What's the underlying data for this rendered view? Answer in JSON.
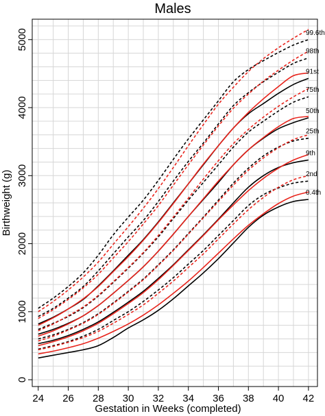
{
  "chart_data": {
    "type": "line",
    "title": "Males",
    "xlabel": "Gestation in Weeks (completed)",
    "ylabel": "Birthweight (g)",
    "xlim": [
      23.6,
      42.6
    ],
    "ylim": [
      -100,
      5300
    ],
    "xticks": [
      24,
      26,
      28,
      30,
      32,
      34,
      36,
      38,
      40,
      42
    ],
    "yticks": [
      0,
      1000,
      2000,
      3000,
      4000,
      5000
    ],
    "grid": true,
    "legend": "none",
    "x": [
      24,
      25,
      26,
      27,
      28,
      29,
      30,
      31,
      32,
      33,
      34,
      35,
      36,
      37,
      38,
      39,
      40,
      41,
      42
    ],
    "colors": {
      "black": "#000000",
      "red": "#e8231b"
    },
    "series": [
      {
        "label": "99.6th",
        "color": "black",
        "dash": true,
        "values": [
          1050,
          1200,
          1370,
          1570,
          1830,
          2130,
          2390,
          2640,
          2930,
          3240,
          3540,
          3820,
          4100,
          4380,
          4560,
          4690,
          4810,
          4920,
          5000
        ]
      },
      {
        "label": "98th",
        "color": "black",
        "dash": true,
        "values": [
          930,
          1050,
          1200,
          1370,
          1600,
          1850,
          2100,
          2340,
          2620,
          2920,
          3210,
          3480,
          3760,
          4030,
          4220,
          4380,
          4520,
          4650,
          4730
        ]
      },
      {
        "label": "91st",
        "color": "black",
        "dash": false,
        "values": [
          820,
          920,
          1040,
          1180,
          1380,
          1600,
          1830,
          2060,
          2320,
          2600,
          2880,
          3160,
          3440,
          3700,
          3910,
          4060,
          4210,
          4340,
          4430
        ]
      },
      {
        "label": "75th",
        "color": "black",
        "dash": true,
        "values": [
          740,
          830,
          930,
          1060,
          1230,
          1430,
          1640,
          1860,
          2100,
          2370,
          2640,
          2900,
          3160,
          3420,
          3640,
          3800,
          3950,
          4080,
          4160
        ]
      },
      {
        "label": "50th",
        "color": "black",
        "dash": false,
        "values": [
          670,
          740,
          830,
          940,
          1090,
          1270,
          1460,
          1660,
          1890,
          2140,
          2400,
          2650,
          2900,
          3160,
          3380,
          3550,
          3690,
          3780,
          3850
        ]
      },
      {
        "label": "25th",
        "color": "black",
        "dash": true,
        "values": [
          600,
          660,
          740,
          840,
          970,
          1130,
          1300,
          1480,
          1690,
          1910,
          2150,
          2390,
          2640,
          2890,
          3110,
          3290,
          3420,
          3510,
          3550
        ]
      },
      {
        "label": "9th",
        "color": "black",
        "dash": false,
        "values": [
          530,
          580,
          650,
          740,
          850,
          990,
          1140,
          1300,
          1490,
          1690,
          1910,
          2130,
          2360,
          2600,
          2830,
          3000,
          3120,
          3190,
          3230
        ]
      },
      {
        "label": "2nd",
        "color": "black",
        "dash": true,
        "values": [
          450,
          500,
          560,
          640,
          740,
          870,
          1000,
          1150,
          1320,
          1500,
          1700,
          1900,
          2120,
          2340,
          2560,
          2720,
          2820,
          2890,
          2920
        ]
      },
      {
        "label": "0.4th",
        "color": "black",
        "dash": false,
        "values": [
          320,
          360,
          400,
          440,
          500,
          620,
          760,
          880,
          1020,
          1190,
          1380,
          1570,
          1780,
          2010,
          2240,
          2420,
          2540,
          2620,
          2650
        ]
      },
      {
        "label": "",
        "color": "red",
        "dash": true,
        "values": [
          1000,
          1150,
          1320,
          1510,
          1730,
          1990,
          2250,
          2520,
          2810,
          3120,
          3440,
          3750,
          4050,
          4300,
          4530,
          4720,
          4880,
          5020,
          5150
        ]
      },
      {
        "label": "",
        "color": "red",
        "dash": true,
        "values": [
          900,
          1030,
          1180,
          1350,
          1550,
          1790,
          2030,
          2290,
          2560,
          2860,
          3160,
          3450,
          3730,
          3990,
          4200,
          4390,
          4550,
          4700,
          4830
        ]
      },
      {
        "label": "",
        "color": "red",
        "dash": false,
        "values": [
          800,
          910,
          1040,
          1190,
          1370,
          1590,
          1810,
          2050,
          2310,
          2590,
          2880,
          3170,
          3440,
          3700,
          3930,
          4130,
          4310,
          4470,
          4510
        ]
      },
      {
        "label": "",
        "color": "red",
        "dash": true,
        "values": [
          720,
          820,
          940,
          1070,
          1240,
          1440,
          1650,
          1870,
          2120,
          2390,
          2670,
          2950,
          3220,
          3470,
          3680,
          3860,
          4020,
          4160,
          4280
        ]
      },
      {
        "label": "",
        "color": "red",
        "dash": false,
        "values": [
          640,
          720,
          820,
          940,
          1090,
          1270,
          1460,
          1660,
          1890,
          2140,
          2400,
          2660,
          2920,
          3160,
          3380,
          3560,
          3720,
          3840,
          3870
        ]
      },
      {
        "label": "",
        "color": "red",
        "dash": true,
        "values": [
          570,
          640,
          730,
          830,
          960,
          1120,
          1290,
          1470,
          1680,
          1900,
          2140,
          2380,
          2620,
          2860,
          3080,
          3260,
          3410,
          3530,
          3600
        ]
      },
      {
        "label": "",
        "color": "red",
        "dash": false,
        "values": [
          500,
          560,
          630,
          720,
          830,
          970,
          1120,
          1280,
          1470,
          1680,
          1900,
          2120,
          2350,
          2570,
          2780,
          2960,
          3110,
          3230,
          3310
        ]
      },
      {
        "label": "",
        "color": "red",
        "dash": true,
        "values": [
          440,
          490,
          550,
          620,
          710,
          830,
          960,
          1100,
          1270,
          1450,
          1650,
          1850,
          2070,
          2290,
          2500,
          2680,
          2830,
          2940,
          3000
        ]
      },
      {
        "label": "",
        "color": "red",
        "dash": false,
        "values": [
          380,
          420,
          470,
          530,
          610,
          710,
          820,
          950,
          1100,
          1270,
          1450,
          1650,
          1860,
          2070,
          2270,
          2440,
          2590,
          2700,
          2760
        ]
      }
    ]
  }
}
